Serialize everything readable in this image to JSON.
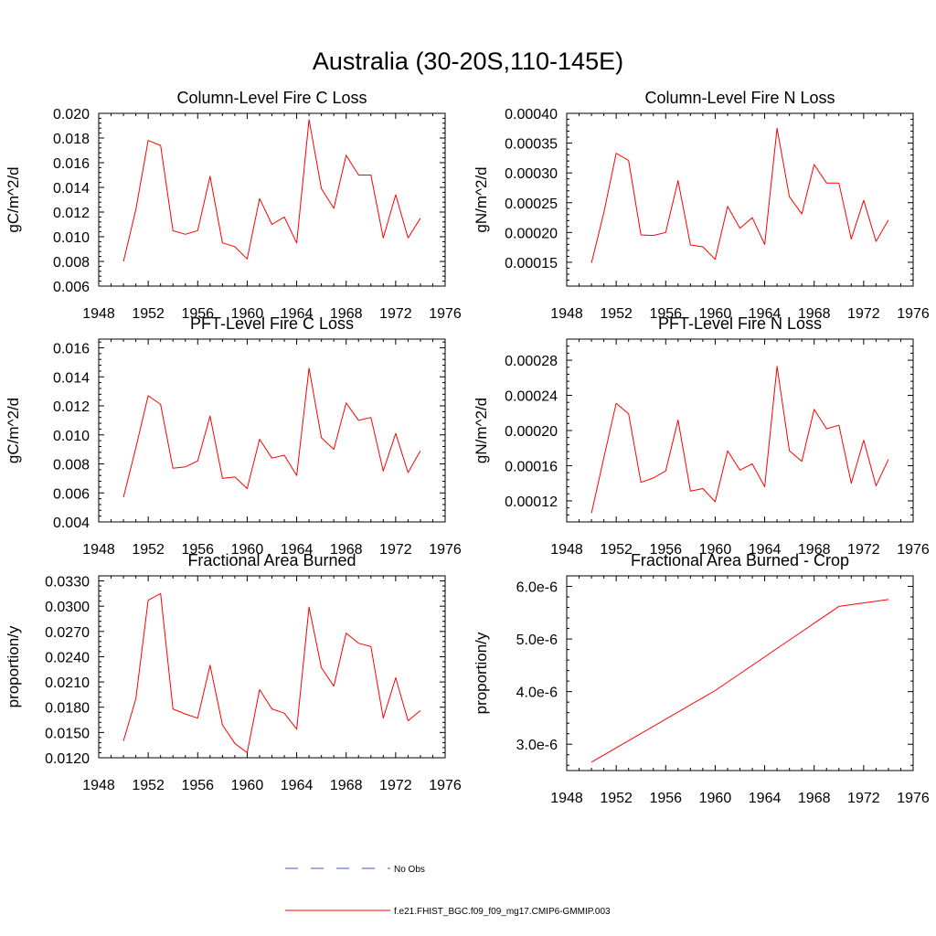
{
  "figure": {
    "title": "Australia (30-20S,110-145E)",
    "line_color": "#ff0000",
    "obs_color": "#4455cc"
  },
  "legend": {
    "obs_label": "No Obs",
    "model_label": "f.e21.FHIST_BGC.f09_f09_mg17.CMIP6-GMMIP.003"
  },
  "chart_data": [
    {
      "type": "line",
      "title": "Column-Level Fire C Loss",
      "ylabel": "gC/m^2/d",
      "xlim": [
        1948,
        1976
      ],
      "xticks": [
        "1948",
        "1952",
        "1956",
        "1960",
        "1964",
        "1968",
        "1972",
        "1976"
      ],
      "ylim": [
        0.006,
        0.02
      ],
      "yticks": [
        "0.006",
        "0.008",
        "0.010",
        "0.012",
        "0.014",
        "0.016",
        "0.018",
        "0.020"
      ],
      "x": [
        1950,
        1951,
        1952,
        1953,
        1954,
        1955,
        1956,
        1957,
        1958,
        1959,
        1960,
        1961,
        1962,
        1963,
        1964,
        1965,
        1966,
        1967,
        1968,
        1969,
        1970,
        1971,
        1972,
        1973,
        1974
      ],
      "y": [
        0.008,
        0.0122,
        0.0178,
        0.0174,
        0.0105,
        0.0102,
        0.0105,
        0.0149,
        0.0095,
        0.0092,
        0.0082,
        0.0131,
        0.011,
        0.0116,
        0.0095,
        0.0195,
        0.0139,
        0.0123,
        0.0166,
        0.015,
        0.015,
        0.0099,
        0.0134,
        0.0099,
        0.0115
      ]
    },
    {
      "type": "line",
      "title": "Column-Level Fire N Loss",
      "ylabel": "gN/m^2/d",
      "xlim": [
        1948,
        1976
      ],
      "xticks": [
        "1948",
        "1952",
        "1956",
        "1960",
        "1964",
        "1968",
        "1972",
        "1976"
      ],
      "ylim": [
        0.00011,
        0.0004
      ],
      "yticks": [
        "0.00015",
        "0.00020",
        "0.00025",
        "0.00030",
        "0.00035",
        "0.00040"
      ],
      "x": [
        1950,
        1951,
        1952,
        1953,
        1954,
        1955,
        1956,
        1957,
        1958,
        1959,
        1960,
        1961,
        1962,
        1963,
        1964,
        1965,
        1966,
        1967,
        1968,
        1969,
        1970,
        1971,
        1972,
        1973,
        1974
      ],
      "y": [
        0.000149,
        0.000233,
        0.000333,
        0.000321,
        0.000196,
        0.000195,
        0.0002,
        0.000287,
        0.000179,
        0.000176,
        0.000155,
        0.000244,
        0.000207,
        0.000225,
        0.00018,
        0.000375,
        0.00026,
        0.000231,
        0.000314,
        0.000283,
        0.000283,
        0.000189,
        0.000254,
        0.000185,
        0.000221
      ]
    },
    {
      "type": "line",
      "title": "PFT-Level Fire C Loss",
      "ylabel": "gC/m^2/d",
      "xlim": [
        1948,
        1976
      ],
      "xticks": [
        "1948",
        "1952",
        "1956",
        "1960",
        "1964",
        "1968",
        "1972",
        "1976"
      ],
      "ylim": [
        0.004,
        0.0166
      ],
      "yticks": [
        "0.004",
        "0.006",
        "0.008",
        "0.010",
        "0.012",
        "0.014",
        "0.016"
      ],
      "x": [
        1950,
        1951,
        1952,
        1953,
        1954,
        1955,
        1956,
        1957,
        1958,
        1959,
        1960,
        1961,
        1962,
        1963,
        1964,
        1965,
        1966,
        1967,
        1968,
        1969,
        1970,
        1971,
        1972,
        1973,
        1974
      ],
      "y": [
        0.0057,
        0.0091,
        0.0127,
        0.0121,
        0.0077,
        0.0078,
        0.0082,
        0.0113,
        0.007,
        0.0071,
        0.0063,
        0.0097,
        0.0084,
        0.0086,
        0.0072,
        0.0146,
        0.0098,
        0.009,
        0.0122,
        0.011,
        0.0112,
        0.0075,
        0.0101,
        0.0074,
        0.0089
      ]
    },
    {
      "type": "line",
      "title": "PFT-Level Fire N Loss",
      "ylabel": "gN/m^2/d",
      "xlim": [
        1948,
        1976
      ],
      "xticks": [
        "1948",
        "1952",
        "1956",
        "1960",
        "1964",
        "1968",
        "1972",
        "1976"
      ],
      "ylim": [
        9.6e-05,
        0.000304
      ],
      "yticks": [
        "0.00012",
        "0.00016",
        "0.00020",
        "0.00024",
        "0.00028"
      ],
      "x": [
        1950,
        1951,
        1952,
        1953,
        1954,
        1955,
        1956,
        1957,
        1958,
        1959,
        1960,
        1961,
        1962,
        1963,
        1964,
        1965,
        1966,
        1967,
        1968,
        1969,
        1970,
        1971,
        1972,
        1973,
        1974
      ],
      "y": [
        0.000106,
        0.000169,
        0.000231,
        0.000219,
        0.000141,
        0.000146,
        0.000154,
        0.000212,
        0.000131,
        0.000134,
        0.000119,
        0.000177,
        0.000155,
        0.000162,
        0.000136,
        0.000273,
        0.000177,
        0.000165,
        0.000224,
        0.000202,
        0.000206,
        0.00014,
        0.000189,
        0.000137,
        0.000167
      ]
    },
    {
      "type": "line",
      "title": "Fractional Area Burned",
      "ylabel": "proportion/y",
      "xlim": [
        1948,
        1976
      ],
      "xticks": [
        "1948",
        "1952",
        "1956",
        "1960",
        "1964",
        "1968",
        "1972",
        "1976"
      ],
      "ylim": [
        0.012,
        0.0336
      ],
      "yticks": [
        "0.0120",
        "0.0150",
        "0.0180",
        "0.0210",
        "0.0240",
        "0.0270",
        "0.0300",
        "0.0330"
      ],
      "x": [
        1950,
        1951,
        1952,
        1953,
        1954,
        1955,
        1956,
        1957,
        1958,
        1959,
        1960,
        1961,
        1962,
        1963,
        1964,
        1965,
        1966,
        1967,
        1968,
        1969,
        1970,
        1971,
        1972,
        1973,
        1974
      ],
      "y": [
        0.014,
        0.019,
        0.0307,
        0.0315,
        0.0178,
        0.0172,
        0.0167,
        0.023,
        0.0159,
        0.0137,
        0.0126,
        0.0201,
        0.0178,
        0.0173,
        0.0154,
        0.0299,
        0.0227,
        0.0205,
        0.0268,
        0.0256,
        0.0252,
        0.0167,
        0.0215,
        0.0164,
        0.0176
      ]
    },
    {
      "type": "line",
      "title": "Fractional Area Burned - Crop",
      "ylabel": "proportion/y",
      "xlim": [
        1948,
        1976
      ],
      "xticks": [
        "1948",
        "1952",
        "1956",
        "1960",
        "1964",
        "1968",
        "1972",
        "1976"
      ],
      "ylim": [
        2.5e-06,
        6.2e-06
      ],
      "yticks": [
        "3.0e-6",
        "4.0e-6",
        "5.0e-6",
        "6.0e-6"
      ],
      "x": [
        1950,
        1960,
        1970,
        1974
      ],
      "y": [
        2.66e-06,
        4.02e-06,
        5.62e-06,
        5.75e-06
      ]
    }
  ]
}
